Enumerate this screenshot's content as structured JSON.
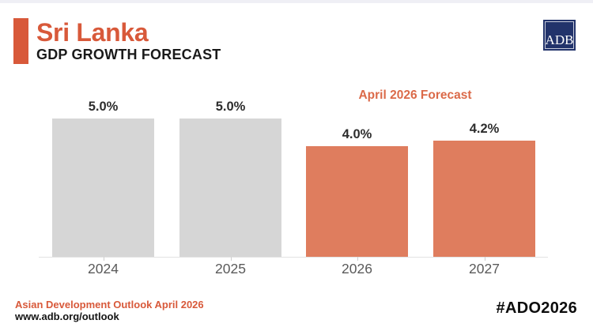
{
  "header": {
    "title": "Sri Lanka",
    "subtitle": "GDP GROWTH FORECAST",
    "logo_text": "ADB"
  },
  "chart_data": {
    "type": "bar",
    "title": "Sri Lanka GDP Growth Forecast",
    "annotation": "April 2026 Forecast",
    "categories": [
      "2024",
      "2025",
      "2026",
      "2027"
    ],
    "values": [
      5.0,
      5.0,
      4.0,
      4.2
    ],
    "value_labels": [
      "5.0%",
      "5.0%",
      "4.0%",
      "4.2%"
    ],
    "series_kind": [
      "actual",
      "actual",
      "forecast",
      "forecast"
    ],
    "unit": "%",
    "ylim": [
      0,
      5
    ],
    "grid": false,
    "legend": "none"
  },
  "footer": {
    "source_line": "Asian Development Outlook April 2026",
    "url": "www.adb.org/outlook",
    "hashtag": "#ADO2026"
  },
  "colors": {
    "accent": "#D8593A",
    "forecast_label": "#DB6A49",
    "bar_actual": "#D6D6D6",
    "bar_forecast": "#DF7D5E",
    "logo_navy": "#22336B",
    "title_dark": "#1A1A1A",
    "value_text": "#2D2D2D",
    "axis_text": "#5A5A5A",
    "axis_line": "#E2E2E2"
  }
}
